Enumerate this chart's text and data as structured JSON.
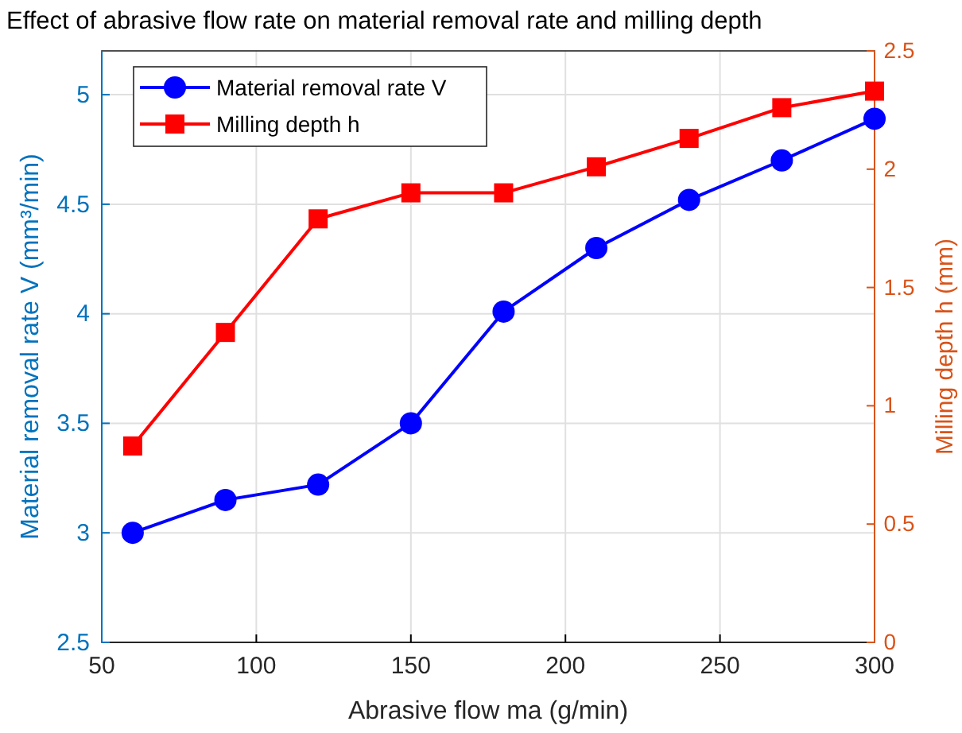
{
  "chart_data": {
    "type": "line",
    "title": "Effect of abrasive flow rate on material removal rate and milling depth",
    "xlabel": "Abrasive flow ma (g/min)",
    "ylabel": "Material removal rate V (mm³/min)",
    "y2label": "Milling depth h (mm)",
    "x": [
      60,
      90,
      120,
      150,
      180,
      210,
      240,
      270,
      300
    ],
    "series": [
      {
        "name": "Material removal rate V",
        "color": "#0000ff",
        "marker": "circle",
        "values": [
          3.0,
          3.15,
          3.22,
          3.5,
          4.01,
          4.3,
          4.52,
          4.7,
          4.89
        ]
      },
      {
        "name": "Milling depth h",
        "color": "#ff0000",
        "marker": "square",
        "axis": "y2",
        "values": [
          0.83,
          1.31,
          1.79,
          1.9,
          1.9,
          2.01,
          2.13,
          2.26,
          2.33
        ]
      }
    ],
    "xlim": [
      50,
      300
    ],
    "xticks": [
      50,
      100,
      150,
      200,
      250,
      300
    ],
    "ylim": [
      2.5,
      5.2
    ],
    "yticks": [
      2.5,
      3,
      3.5,
      4,
      4.5,
      5
    ],
    "y2lim": [
      0,
      2.5
    ],
    "y2ticks": [
      0,
      0.5,
      1,
      1.5,
      2,
      2.5
    ],
    "grid": true,
    "legend": "top left",
    "line_style": "solid"
  }
}
